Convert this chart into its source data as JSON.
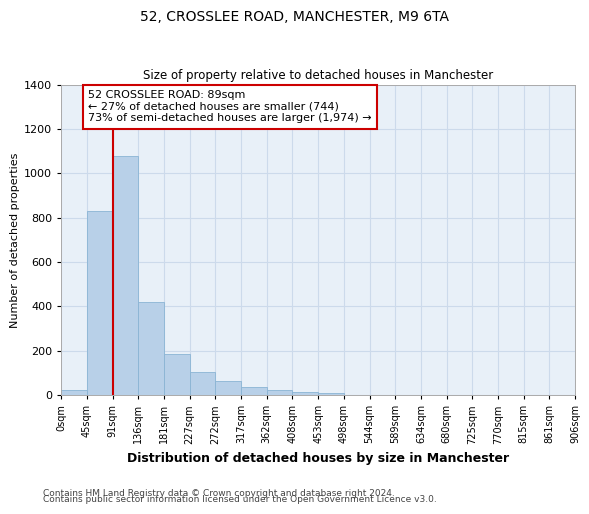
{
  "title1": "52, CROSSLEE ROAD, MANCHESTER, M9 6TA",
  "title2": "Size of property relative to detached houses in Manchester",
  "xlabel": "Distribution of detached houses by size in Manchester",
  "ylabel": "Number of detached properties",
  "bin_labels": [
    "0sqm",
    "45sqm",
    "91sqm",
    "136sqm",
    "181sqm",
    "227sqm",
    "272sqm",
    "317sqm",
    "362sqm",
    "408sqm",
    "453sqm",
    "498sqm",
    "544sqm",
    "589sqm",
    "634sqm",
    "680sqm",
    "725sqm",
    "770sqm",
    "815sqm",
    "861sqm",
    "906sqm"
  ],
  "bar_values": [
    25,
    830,
    1080,
    420,
    185,
    105,
    62,
    35,
    25,
    15,
    10,
    0,
    0,
    0,
    0,
    0,
    0,
    0,
    0,
    0
  ],
  "bar_color": "#b8d0e8",
  "bar_edge_color": "#8ab4d4",
  "grid_color": "#ccdaeb",
  "background_color": "#e8f0f8",
  "vline_x": 91,
  "vline_color": "#cc0000",
  "annotation_text": "52 CROSSLEE ROAD: 89sqm\n← 27% of detached houses are smaller (744)\n73% of semi-detached houses are larger (1,974) →",
  "annotation_box_color": "#ffffff",
  "annotation_box_edge": "#cc0000",
  "footnote1": "Contains HM Land Registry data © Crown copyright and database right 2024.",
  "footnote2": "Contains public sector information licensed under the Open Government Licence v3.0.",
  "ylim": [
    0,
    1400
  ],
  "bin_width": 45,
  "n_bins": 20,
  "title1_fontsize": 10,
  "title2_fontsize": 8.5,
  "xlabel_fontsize": 9,
  "ylabel_fontsize": 8,
  "xtick_fontsize": 7,
  "ytick_fontsize": 8,
  "footnote_fontsize": 6.5,
  "ann_fontsize": 8
}
